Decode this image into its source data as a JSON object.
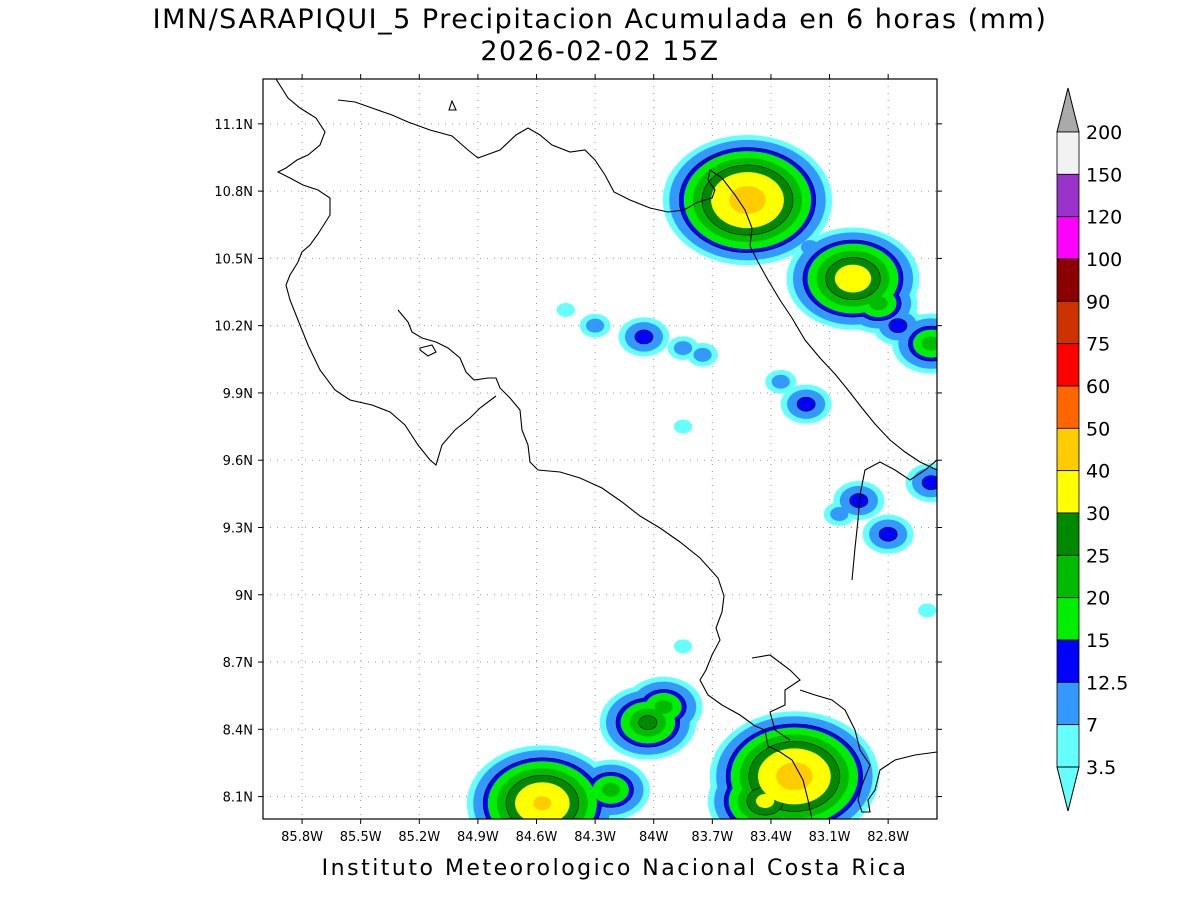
{
  "title": {
    "line1": "IMN/SARAPIQUI_5 Precipitacion Acumulada en 6 horas (mm)",
    "line2": "2026-02-02 15Z"
  },
  "footer": "Instituto Meteorologico Nacional Costa Rica",
  "map": {
    "lon_range": [
      -86.0,
      -82.55
    ],
    "lat_range": [
      8.0,
      11.3
    ],
    "lon_ticks": [
      {
        "value": -85.8,
        "label": "85.8W"
      },
      {
        "value": -85.5,
        "label": "85.5W"
      },
      {
        "value": -85.2,
        "label": "85.2W"
      },
      {
        "value": -84.9,
        "label": "84.9W"
      },
      {
        "value": -84.6,
        "label": "84.6W"
      },
      {
        "value": -84.3,
        "label": "84.3W"
      },
      {
        "value": -84.0,
        "label": "84W"
      },
      {
        "value": -83.7,
        "label": "83.7W"
      },
      {
        "value": -83.4,
        "label": "83.4W"
      },
      {
        "value": -83.1,
        "label": "83.1W"
      },
      {
        "value": -82.8,
        "label": "82.8W"
      }
    ],
    "lat_ticks": [
      {
        "value": 8.1,
        "label": "8.1N"
      },
      {
        "value": 8.4,
        "label": "8.4N"
      },
      {
        "value": 8.7,
        "label": "8.7N"
      },
      {
        "value": 9.0,
        "label": "9N"
      },
      {
        "value": 9.3,
        "label": "9.3N"
      },
      {
        "value": 9.6,
        "label": "9.6N"
      },
      {
        "value": 9.9,
        "label": "9.9N"
      },
      {
        "value": 10.2,
        "label": "10.2N"
      },
      {
        "value": 10.5,
        "label": "10.5N"
      },
      {
        "value": 10.8,
        "label": "10.8N"
      },
      {
        "value": 11.1,
        "label": "11.1N"
      }
    ],
    "grid": true,
    "precip_cells": [
      {
        "lon": -83.56,
        "lat": 10.8,
        "mm": 25
      },
      {
        "lon": -83.52,
        "lat": 10.76,
        "mm": 45
      },
      {
        "lon": -83.6,
        "lat": 10.72,
        "mm": 12.5
      },
      {
        "lon": -83.65,
        "lat": 10.88,
        "mm": 20
      },
      {
        "lon": -83.02,
        "lat": 10.47,
        "mm": 20
      },
      {
        "lon": -82.98,
        "lat": 10.41,
        "mm": 35
      },
      {
        "lon": -82.85,
        "lat": 10.3,
        "mm": 20
      },
      {
        "lon": -82.75,
        "lat": 10.2,
        "mm": 12.5
      },
      {
        "lon": -82.58,
        "lat": 10.12,
        "mm": 20
      },
      {
        "lon": -83.2,
        "lat": 10.55,
        "mm": 7
      },
      {
        "lon": -84.3,
        "lat": 10.2,
        "mm": 7
      },
      {
        "lon": -84.05,
        "lat": 10.15,
        "mm": 12.5
      },
      {
        "lon": -83.85,
        "lat": 10.1,
        "mm": 7
      },
      {
        "lon": -83.75,
        "lat": 10.07,
        "mm": 7
      },
      {
        "lon": -84.45,
        "lat": 10.27,
        "mm": 3.5
      },
      {
        "lon": -83.35,
        "lat": 9.95,
        "mm": 7
      },
      {
        "lon": -83.22,
        "lat": 9.85,
        "mm": 12.5
      },
      {
        "lon": -83.85,
        "lat": 9.75,
        "mm": 3.5
      },
      {
        "lon": -82.95,
        "lat": 9.42,
        "mm": 12.5
      },
      {
        "lon": -83.05,
        "lat": 9.36,
        "mm": 7
      },
      {
        "lon": -82.8,
        "lat": 9.27,
        "mm": 12.5
      },
      {
        "lon": -82.58,
        "lat": 9.5,
        "mm": 12.5
      },
      {
        "lon": -82.6,
        "lat": 8.93,
        "mm": 3.5
      },
      {
        "lon": -84.03,
        "lat": 8.43,
        "mm": 25
      },
      {
        "lon": -83.95,
        "lat": 8.5,
        "mm": 20
      },
      {
        "lon": -83.85,
        "lat": 8.77,
        "mm": 3.5
      },
      {
        "lon": -84.57,
        "lat": 8.07,
        "mm": 40
      },
      {
        "lon": -84.65,
        "lat": 8.06,
        "mm": 12.5
      },
      {
        "lon": -84.22,
        "lat": 8.13,
        "mm": 20
      },
      {
        "lon": -83.28,
        "lat": 8.19,
        "mm": 45
      },
      {
        "lon": -83.43,
        "lat": 8.08,
        "mm": 30
      }
    ]
  },
  "colorbar": {
    "levels": [
      {
        "label": "200",
        "color": "#f2f2f2"
      },
      {
        "label": "150",
        "color": "#9933cc"
      },
      {
        "label": "120",
        "color": "#ff00ff"
      },
      {
        "label": "100",
        "color": "#8b0000"
      },
      {
        "label": "90",
        "color": "#cc3300"
      },
      {
        "label": "75",
        "color": "#ff0000"
      },
      {
        "label": "60",
        "color": "#ff6600"
      },
      {
        "label": "50",
        "color": "#ffcc00"
      },
      {
        "label": "40",
        "color": "#ffff00"
      },
      {
        "label": "30",
        "color": "#008800"
      },
      {
        "label": "25",
        "color": "#00bb00"
      },
      {
        "label": "20",
        "color": "#00ee00"
      },
      {
        "label": "15",
        "color": "#0000ff"
      },
      {
        "label": "12.5",
        "color": "#3399ff"
      },
      {
        "label": "7",
        "color": "#66ffff"
      },
      {
        "label": "3.5",
        "color": "#ffffff"
      }
    ],
    "top_arrow_color": "#aaaaaa",
    "bottom_arrow_color": "#ffffff"
  }
}
